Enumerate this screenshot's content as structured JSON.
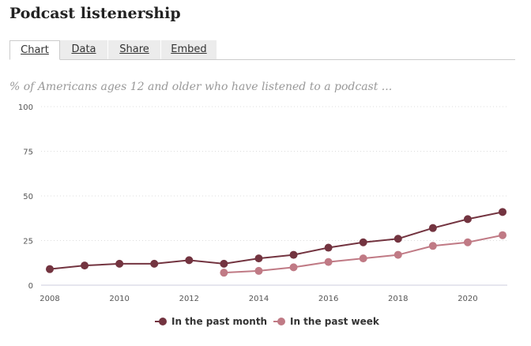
{
  "header": {
    "title": "Podcast listenership"
  },
  "tabs": [
    {
      "label": "Chart",
      "active": true
    },
    {
      "label": "Data",
      "active": false
    },
    {
      "label": "Share",
      "active": false
    },
    {
      "label": "Embed",
      "active": false
    }
  ],
  "chart_data": {
    "type": "line",
    "title": "Podcast listenership",
    "subtitle": "% of Americans ages 12 and older who have listened to a podcast ...",
    "xlabel": "",
    "ylabel": "",
    "xlim": [
      2008,
      2021
    ],
    "ylim": [
      0,
      100
    ],
    "xticks": [
      2008,
      2010,
      2012,
      2014,
      2016,
      2018,
      2020
    ],
    "yticks": [
      0,
      25,
      50,
      75,
      100
    ],
    "grid": true,
    "legend_position": "bottom",
    "series": [
      {
        "name": "In the past month",
        "color": "#733440",
        "x": [
          2008,
          2009,
          2010,
          2011,
          2012,
          2013,
          2014,
          2015,
          2016,
          2017,
          2018,
          2019,
          2020,
          2021
        ],
        "values": [
          9,
          11,
          12,
          12,
          14,
          12,
          15,
          17,
          21,
          24,
          26,
          32,
          37,
          41
        ]
      },
      {
        "name": "In the past week",
        "color": "#c07a85",
        "x": [
          2013,
          2014,
          2015,
          2016,
          2017,
          2018,
          2019,
          2020,
          2021
        ],
        "values": [
          7,
          8,
          10,
          13,
          15,
          17,
          22,
          24,
          28
        ]
      }
    ]
  }
}
